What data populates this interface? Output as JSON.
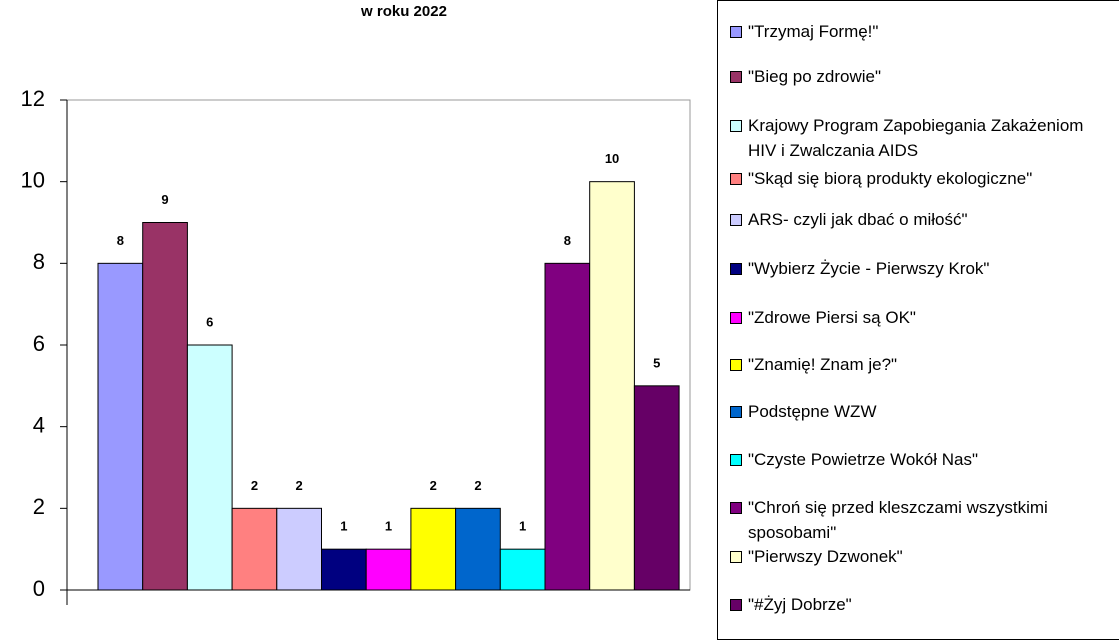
{
  "chart_data": {
    "type": "bar",
    "title": "w roku 2022",
    "ylim": [
      0,
      12
    ],
    "yticks": [
      0,
      2,
      4,
      6,
      8,
      10,
      12
    ],
    "series": [
      {
        "name": "\"Trzymaj Formę!\"",
        "color": "#9999ff",
        "values": [
          8
        ]
      },
      {
        "name": "\"Bieg po zdrowie\"",
        "color": "#993366",
        "values": [
          9
        ]
      },
      {
        "name": "Krajowy Program Zapobiegania Zakażeniom HIV i Zwalczania AIDS",
        "color": "#ccffff",
        "values": [
          6
        ]
      },
      {
        "name": "\"Skąd się biorą produkty ekologiczne\"",
        "color": "#ff8080",
        "values": [
          2
        ]
      },
      {
        "name": "ARS- czyli jak dbać o miłość\"",
        "color": "#ccccff",
        "values": [
          2
        ]
      },
      {
        "name": "\"Wybierz Życie - Pierwszy Krok\"",
        "color": "#000080",
        "values": [
          1
        ]
      },
      {
        "name": "\"Zdrowe Piersi są OK\"",
        "color": "#ff00ff",
        "values": [
          1
        ]
      },
      {
        "name": "\"Znamię! Znam je?\"",
        "color": "#ffff00",
        "values": [
          2
        ]
      },
      {
        "name": "Podstępne WZW",
        "color": "#0066cc",
        "values": [
          2
        ]
      },
      {
        "name": "\"Czyste Powietrze Wokół Nas\"",
        "color": "#00ffff",
        "values": [
          1
        ]
      },
      {
        "name": "\"Chroń się przed kleszczami wszystkimi sposobami\"",
        "color": "#800080",
        "values": [
          8
        ]
      },
      {
        "name": "\"Pierwszy Dzwonek\"",
        "color": "#ffffcc",
        "values": [
          10
        ]
      },
      {
        "name": "\"#Żyj Dobrze\"",
        "color": "#660066",
        "values": [
          5
        ]
      }
    ]
  }
}
